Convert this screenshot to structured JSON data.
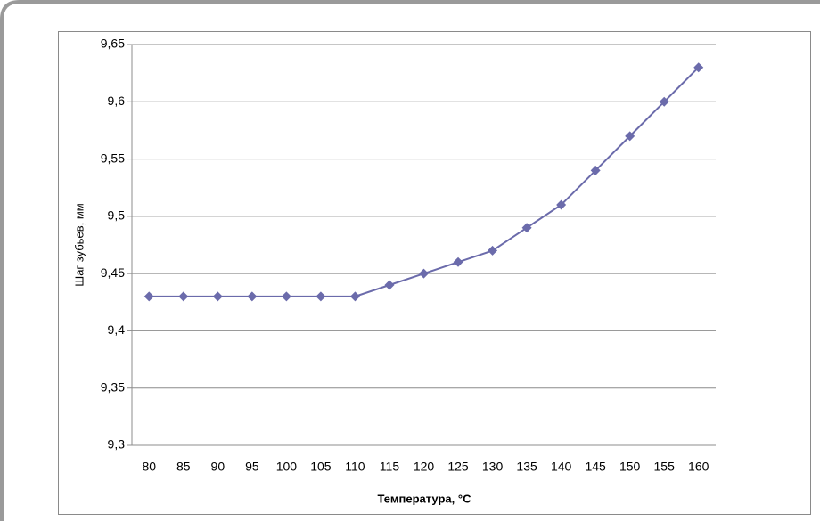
{
  "chart_data": {
    "type": "line",
    "x_label": "Температура, °C",
    "y_label": "Шаг зубьев, мм",
    "categories": [
      "80",
      "85",
      "90",
      "95",
      "100",
      "105",
      "110",
      "115",
      "120",
      "125",
      "130",
      "135",
      "140",
      "145",
      "150",
      "155",
      "160"
    ],
    "values": [
      9.43,
      9.43,
      9.43,
      9.43,
      9.43,
      9.43,
      9.43,
      9.44,
      9.45,
      9.46,
      9.47,
      9.49,
      9.51,
      9.54,
      9.57,
      9.6,
      9.63
    ],
    "color": "#6b6bab",
    "ylim": [
      9.3,
      9.65
    ],
    "yticks": [
      {
        "value": 9.3,
        "label": "9,3"
      },
      {
        "value": 9.35,
        "label": "9,35"
      },
      {
        "value": 9.4,
        "label": "9,4"
      },
      {
        "value": 9.45,
        "label": "9,45"
      },
      {
        "value": 9.5,
        "label": "9,5"
      },
      {
        "value": 9.55,
        "label": "9,55"
      },
      {
        "value": 9.6,
        "label": "9,6"
      },
      {
        "value": 9.65,
        "label": "9,65"
      }
    ],
    "grid": true
  }
}
